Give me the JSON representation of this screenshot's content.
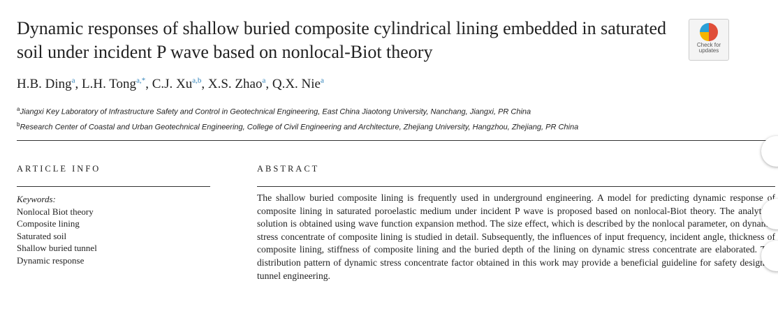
{
  "header": {
    "title": "Dynamic responses of shallow buried composite cylindrical lining embedded in saturated soil under incident P wave based on nonlocal-Biot theory",
    "badge": "Check for updates"
  },
  "authors": [
    {
      "name": "H.B. Ding",
      "sup": "a"
    },
    {
      "name": "L.H. Tong",
      "sup": "a,*"
    },
    {
      "name": "C.J. Xu",
      "sup": "a,b"
    },
    {
      "name": "X.S. Zhao",
      "sup": "a"
    },
    {
      "name": "Q.X. Nie",
      "sup": "a"
    }
  ],
  "affiliations": [
    {
      "sup": "a",
      "text": "Jiangxi Key Laboratory of Infrastructure Safety and Control in Geotechnical Engineering, East China Jiaotong University, Nanchang, Jiangxi, PR China"
    },
    {
      "sup": "b",
      "text": "Research Center of Coastal and Urban Geotechnical Engineering, College of Civil Engineering and Architecture, Zhejiang University, Hangzhou, Zhejiang, PR China"
    }
  ],
  "article_info": {
    "heading": "ARTICLE INFO",
    "keywords_label": "Keywords:",
    "keywords": [
      "Nonlocal Biot theory",
      "Composite lining",
      "Saturated soil",
      "Shallow buried tunnel",
      "Dynamic response"
    ]
  },
  "abstract": {
    "heading": "ABSTRACT",
    "text": "The shallow buried composite lining is frequently used in underground engineering. A model for predicting dynamic response of composite lining in saturated poroelastic medium under incident P wave is proposed based on nonlocal-Biot theory. The analytical solution is obtained using wave function expansion method. The size effect, which is described by the nonlocal parameter, on dynamic stress concentrate of composite lining is studied in detail. Subsequently, the influences of input frequency, incident angle, thickness of composite lining, stiffness of composite lining and the buried depth of the lining on dynamic stress concentrate are elaborated. The distribution pattern of dynamic stress concentrate factor obtained in this work may provide a beneficial guideline for safety design in tunnel engineering."
  }
}
